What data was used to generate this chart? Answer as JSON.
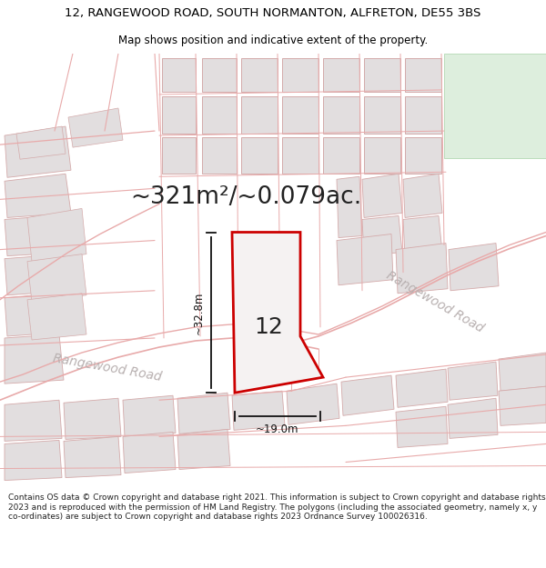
{
  "title_line1": "12, RANGEWOOD ROAD, SOUTH NORMANTON, ALFRETON, DE55 3BS",
  "title_line2": "Map shows position and indicative extent of the property.",
  "area_text": "~321m²/~0.079ac.",
  "plot_label": "12",
  "dim_height": "~32.8m",
  "dim_width": "~19.0m",
  "road_label1": "Rangewood Road",
  "road_label2": "Rangewood Road",
  "footer_text": "Contains OS data © Crown copyright and database right 2021. This information is subject to Crown copyright and database rights 2023 and is reproduced with the permission of HM Land Registry. The polygons (including the associated geometry, namely x, y co-ordinates) are subject to Crown copyright and database rights 2023 Ordnance Survey 100026316.",
  "bg_map_color": "#f7f4f4",
  "bg_title_color": "#ffffff",
  "road_line_color": "#e8aaaa",
  "block_fill": "#e2dedf",
  "block_edge": "#d4aaaa",
  "green_fill": "#ddeedd",
  "green_edge": "#bbddbb",
  "plot_edge_color": "#cc0000",
  "plot_fill_color": "#f5f2f2",
  "dim_color": "#111111",
  "label_color": "#aaaaaa",
  "title_fontsize": 9.5,
  "subtitle_fontsize": 8.5,
  "area_fontsize": 19,
  "plot_num_fontsize": 18,
  "dim_fontsize": 8.5,
  "road_label_fontsize": 10,
  "footer_fontsize": 6.5
}
